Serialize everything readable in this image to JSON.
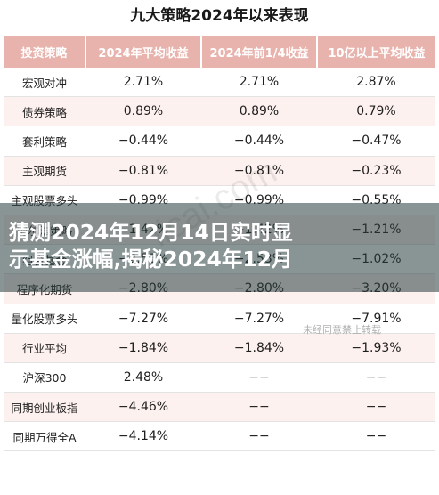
{
  "title": "九大策略2024年以来表现",
  "headers": [
    "投资策略",
    "2024年平均收益",
    "2024年前1/4收益",
    "10亿以上平均收益"
  ],
  "rows": [
    [
      "宏观对冲",
      "2.71%",
      "2.71%",
      "2.87%"
    ],
    [
      "债券策略",
      "0.89%",
      "0.89%",
      "0.79%"
    ],
    [
      "套利策略",
      "−0.44%",
      "−0.44%",
      "−0.47%"
    ],
    [
      "主观期货",
      "−0.81%",
      "−0.81%",
      "−0.23%"
    ],
    [
      "主观股票多头",
      "−0.99%",
      "−0.99%",
      "−0.55%"
    ],
    [
      "阿尔法策略",
      "−1.42%",
      "−1.42%",
      "−1.21%"
    ],
    [
      "组合基金",
      "−2.53%",
      "−2.53%",
      "−1.02%"
    ],
    [
      "程序化期货",
      "−2.80%",
      "−2.80%",
      "−3.20%"
    ],
    [
      "量化股票多头",
      "−7.27%",
      "−7.27%",
      "−7.91%"
    ],
    [
      "行业平均",
      "−1.84%",
      "−1.84%",
      "−1.93%"
    ],
    [
      "沪深300",
      "2.48%",
      "−−",
      "−−"
    ],
    [
      "同期创业板指",
      "−4.46%",
      "−−",
      "−−"
    ],
    [
      "同期万得全A",
      "−4.14%",
      "−−",
      "−−"
    ]
  ],
  "watermark": "licai.com",
  "stamp": "未经同意禁止转载",
  "overlay": {
    "line1": "猜测2024年12月14日实时显",
    "line2": "示基金涨幅,揭秘2024年12月"
  },
  "colors": {
    "header_bg": "#e9b3ad",
    "stripe": "#fdf1ef"
  }
}
